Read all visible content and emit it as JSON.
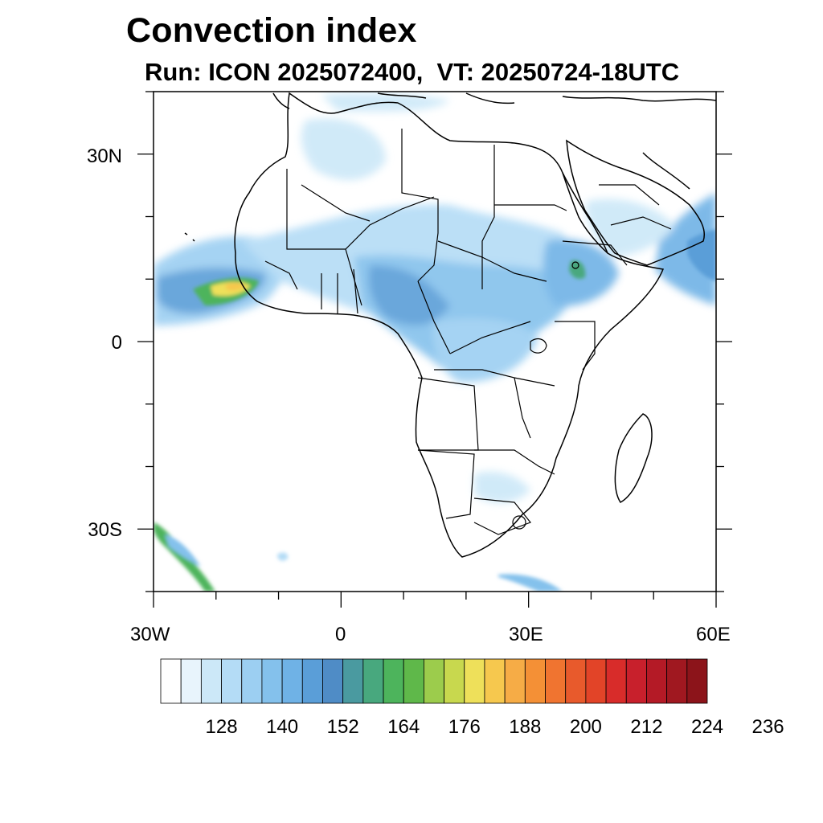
{
  "title": "Convection index",
  "subtitle": "Run: ICON 2025072400,  VT: 20250724-18UTC",
  "map": {
    "lon_range": [
      -30,
      60
    ],
    "lat_range": [
      -40,
      40
    ],
    "lat_labels": [
      "30N",
      "0",
      "30S"
    ],
    "lat_label_values": [
      30,
      0,
      -30
    ],
    "lon_labels": [
      "30W",
      "0",
      "30E",
      "60E"
    ],
    "lon_label_values": [
      -30,
      0,
      30,
      60
    ]
  },
  "colorbar": {
    "tick_labels": [
      "128",
      "140",
      "152",
      "164",
      "176",
      "188",
      "200",
      "212",
      "224",
      "236"
    ],
    "colors": [
      "#ffffff",
      "#e8f4fc",
      "#cce8f8",
      "#b4dcf6",
      "#9ccff2",
      "#84c1ec",
      "#6fb2e6",
      "#5a9ed8",
      "#4f8cc6",
      "#4a9aa0",
      "#48a87e",
      "#4db45c",
      "#5fb84a",
      "#9ccc4c",
      "#c8d84e",
      "#eee05a",
      "#f6c84e",
      "#f6ac46",
      "#f49036",
      "#f07430",
      "#e85a2c",
      "#e24428",
      "#d82c2a",
      "#c8202c",
      "#b41a26",
      "#a01820",
      "#8c141a"
    ]
  }
}
